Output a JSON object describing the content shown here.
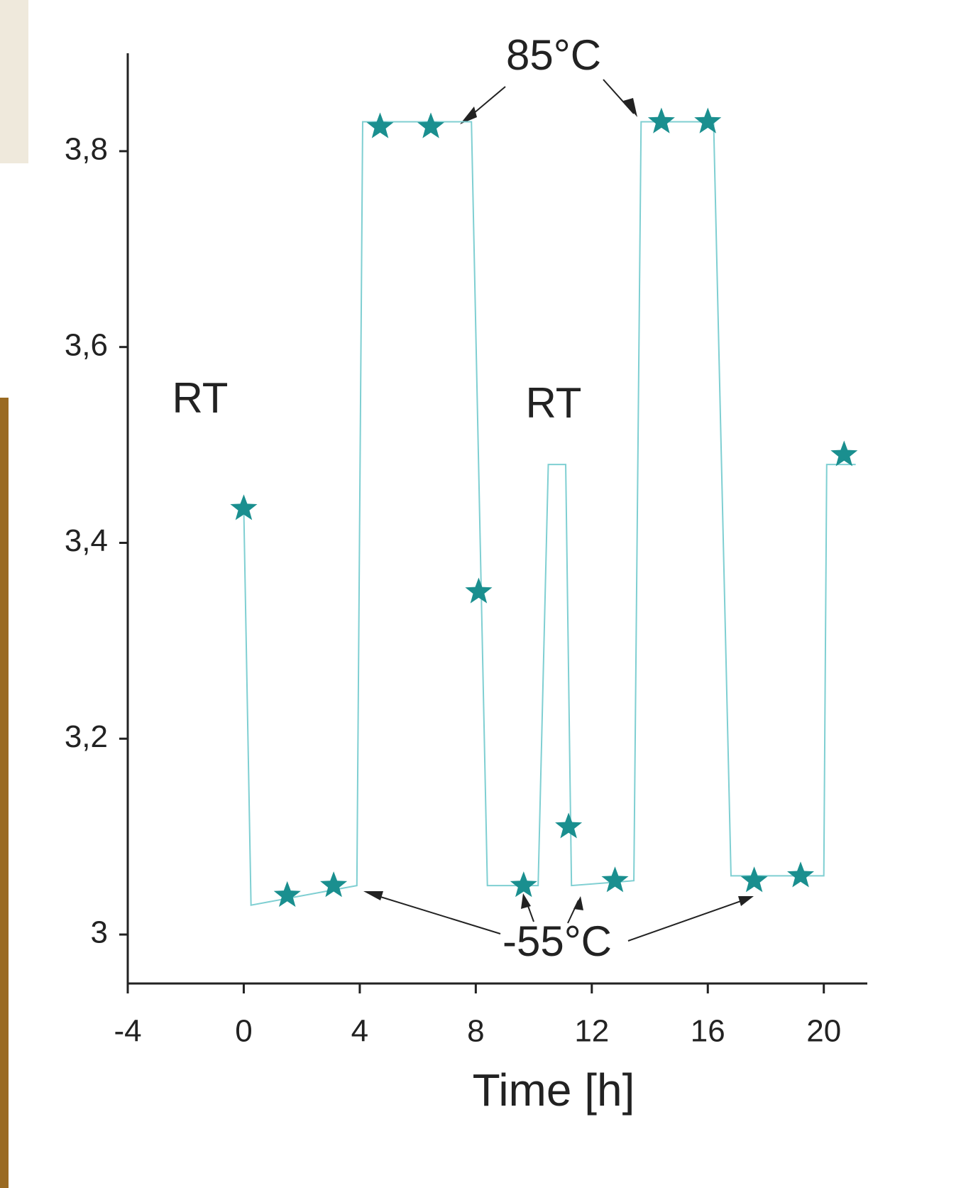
{
  "chart_data": {
    "type": "scatter",
    "x_label": "Time [h]",
    "xlim": [
      -4,
      21.5
    ],
    "ylim": [
      2.95,
      3.9
    ],
    "xticks": [
      -4,
      0,
      4,
      8,
      12,
      16,
      20
    ],
    "yticks": [
      3,
      {
        "value": 3.2,
        "label": "3,2"
      },
      {
        "value": 3.4,
        "label": "3,4"
      },
      {
        "value": 3.6,
        "label": "3,6"
      },
      {
        "value": 3.8,
        "label": "3,8"
      }
    ],
    "series": [
      {
        "color": "#7fcfd2",
        "x": [
          0,
          0.25,
          3.9,
          4.1,
          7.85,
          8.4,
          10.15,
          10.5,
          11.1,
          11.3,
          13.45,
          13.7,
          16.2,
          16.8,
          20,
          20.1,
          21.1
        ],
        "values": [
          3.435,
          3.03,
          3.05,
          3.83,
          3.83,
          3.05,
          3.05,
          3.48,
          3.48,
          3.05,
          3.055,
          3.83,
          3.83,
          3.06,
          3.06,
          3.48,
          3.48
        ]
      },
      {
        "color": "#1a8f8f",
        "x": [
          0,
          1.5,
          3.1,
          4.7,
          6.45,
          8.1,
          9.65,
          11.2,
          12.8,
          14.4,
          16,
          17.6,
          19.2,
          20.7
        ],
        "values": [
          3.435,
          3.04,
          3.05,
          3.825,
          3.825,
          3.35,
          3.05,
          3.11,
          3.055,
          3.83,
          3.83,
          3.055,
          3.06,
          3.49
        ]
      }
    ],
    "annotations": [
      "85°C",
      "RT",
      "RT",
      "-55°C"
    ]
  }
}
